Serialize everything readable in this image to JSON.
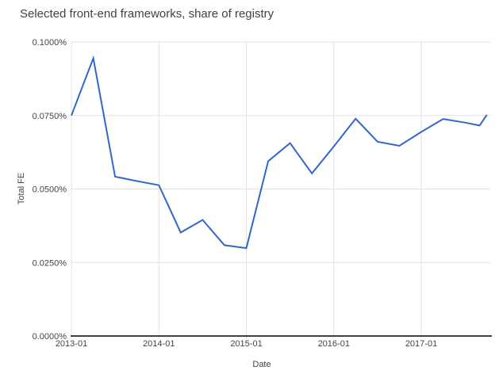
{
  "chart_data": {
    "type": "line",
    "title": "Selected front-end frameworks, share of registry",
    "xlabel": "Date",
    "ylabel": "Total FE",
    "x": [
      "2013-01",
      "2013-04",
      "2013-07",
      "2013-10",
      "2014-01",
      "2014-04",
      "2014-07",
      "2014-10",
      "2015-01",
      "2015-04",
      "2015-07",
      "2015-10",
      "2016-01",
      "2016-04",
      "2016-07",
      "2016-10",
      "2017-01",
      "2017-04",
      "2017-07",
      "2017-09",
      "2017-10"
    ],
    "values": [
      0.075,
      0.0945,
      0.0542,
      0.0527,
      0.0513,
      0.0352,
      0.0395,
      0.0309,
      0.0299,
      0.0595,
      0.0656,
      0.0553,
      0.0645,
      0.0739,
      0.0661,
      0.0647,
      0.0694,
      0.0738,
      0.0726,
      0.0716,
      0.0752
    ],
    "unit": "percent",
    "ylim": [
      0,
      0.1
    ],
    "y_tick_values": [
      0,
      0.025,
      0.05,
      0.075,
      0.1
    ],
    "y_tick_labels": [
      "0.0000%",
      "0.0250%",
      "0.0500%",
      "0.0750%",
      "0.1000%"
    ],
    "x_tick_labels": [
      "2013-01",
      "2014-01",
      "2015-01",
      "2016-01",
      "2017-01"
    ],
    "grid": true,
    "legend": "none",
    "colors": {
      "line": "#3366cc",
      "title": "#424242",
      "tick_label": "#444444",
      "gridline": "#e2e2e2",
      "axis_line": "#424242",
      "background": "#ffffff"
    }
  }
}
